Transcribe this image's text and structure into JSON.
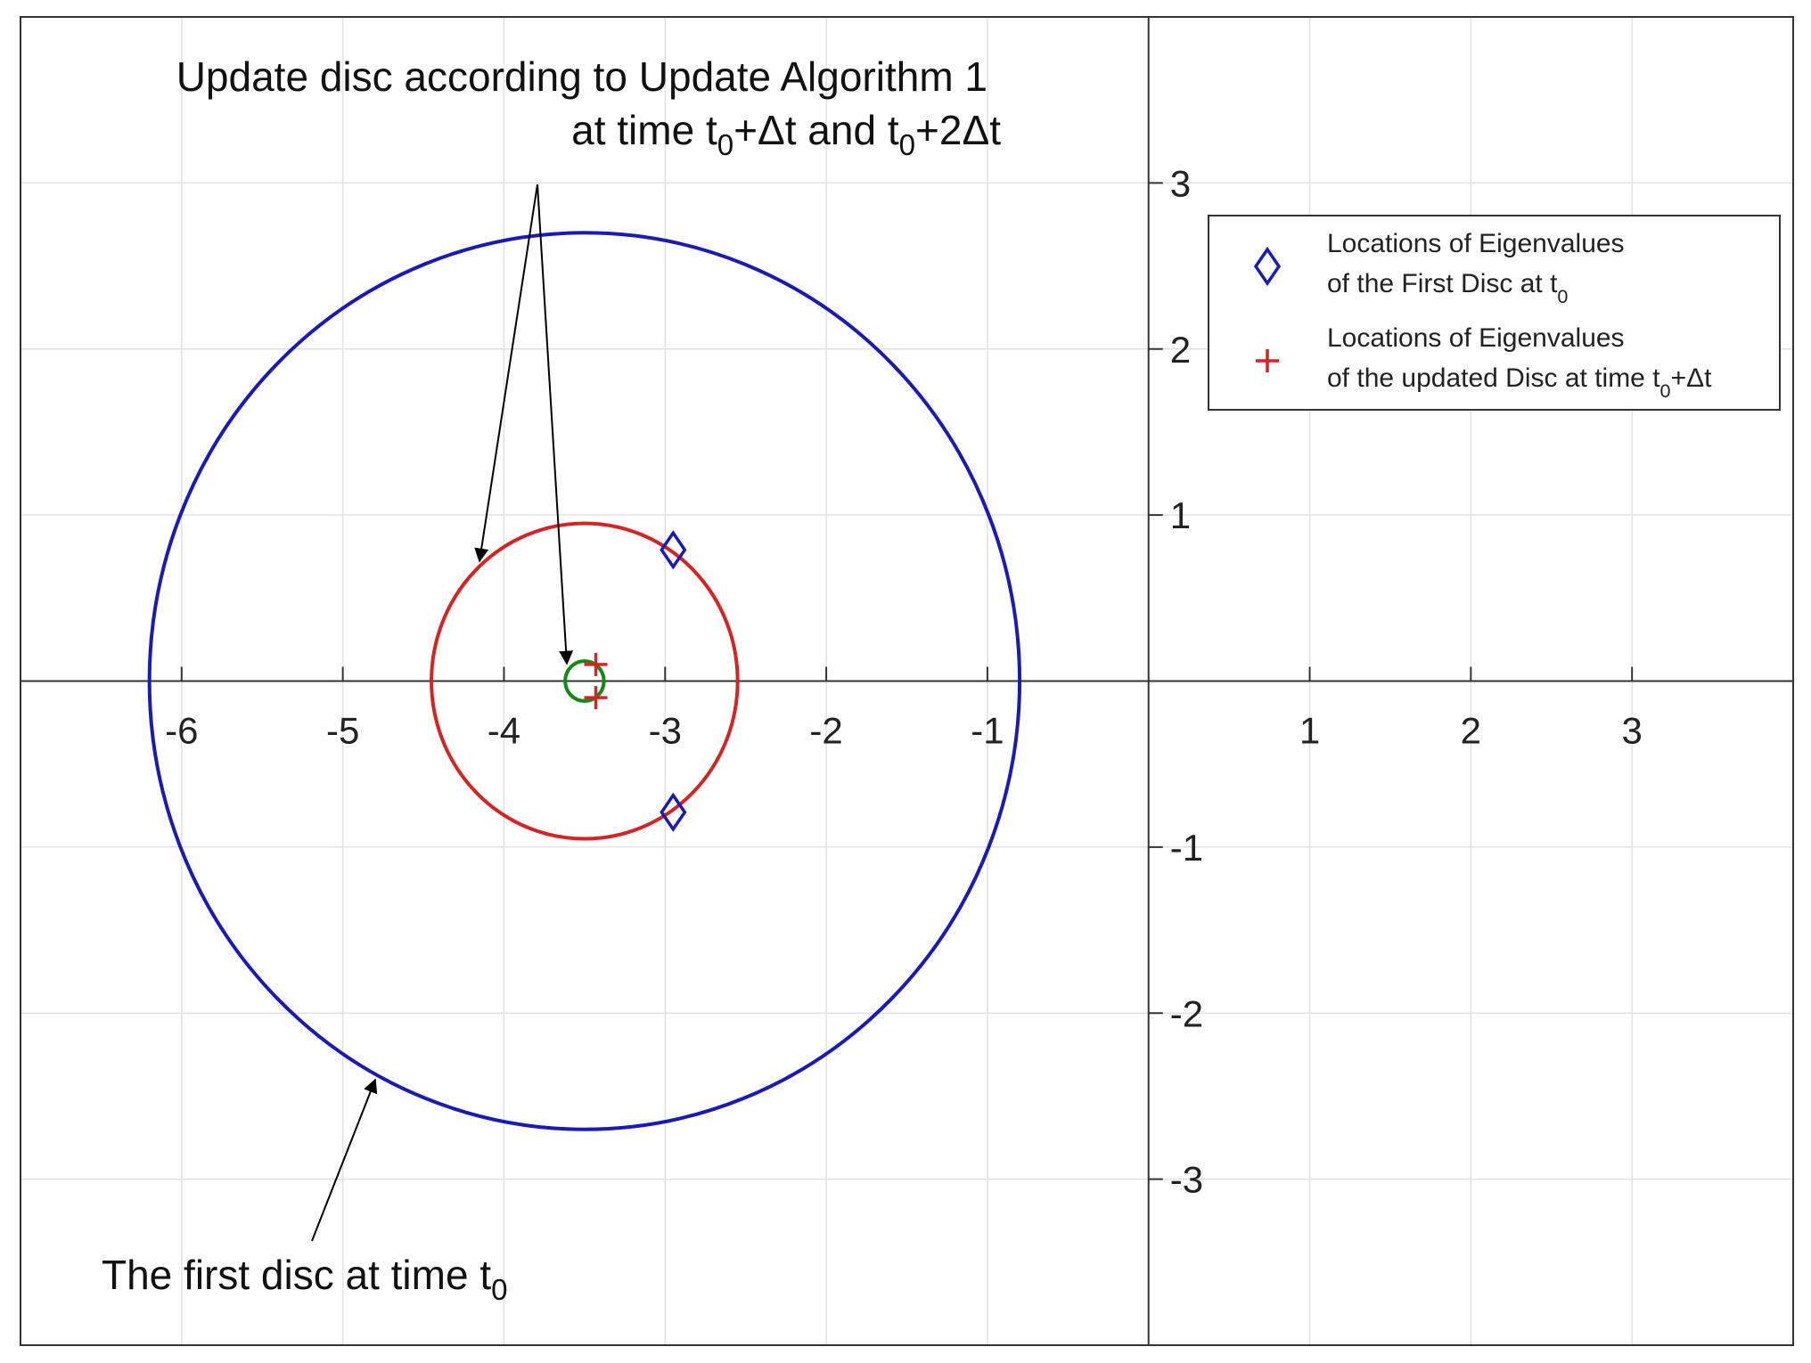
{
  "chart_data": {
    "type": "scatter",
    "xlim": [
      -7,
      4
    ],
    "ylim": [
      -4,
      4
    ],
    "xticks": [
      -6,
      -5,
      -4,
      -3,
      -2,
      -1,
      1,
      2,
      3
    ],
    "yticks": [
      -3,
      -2,
      -1,
      1,
      2,
      3
    ],
    "grid": true,
    "legend": "upper right",
    "circles": [
      {
        "center": [
          -3.5,
          0
        ],
        "radius": 2.7,
        "color": "#1a1ab4"
      },
      {
        "center": [
          -3.5,
          0
        ],
        "radius": 0.95,
        "color": "#d42424"
      },
      {
        "center": [
          -3.5,
          0
        ],
        "radius": 0.12,
        "color": "#138a13"
      }
    ],
    "series": [
      {
        "name": [
          "Locations of Eigenvalues",
          "of the First Disc at t",
          "0"
        ],
        "marker": "diamond",
        "color": "#1a1ab4",
        "x": [
          -2.95,
          -2.95
        ],
        "values": [
          0.79,
          -0.79
        ]
      },
      {
        "name": [
          "Locations of Eigenvalues",
          "of the updated Disc at time t",
          "0",
          "+Δt"
        ],
        "marker": "plus",
        "color": "#d42424",
        "x": [
          -3.43,
          -3.43
        ],
        "values": [
          0.1,
          -0.1
        ]
      }
    ],
    "annotations": [
      {
        "lines": [
          [
            "Update disc according to Update Algorithm 1"
          ],
          [
            "at time t",
            "0",
            "+Δt and t",
            "0",
            "+2Δt"
          ]
        ]
      },
      {
        "lines": [
          [
            "The first disc at time t",
            "0"
          ]
        ]
      }
    ]
  }
}
